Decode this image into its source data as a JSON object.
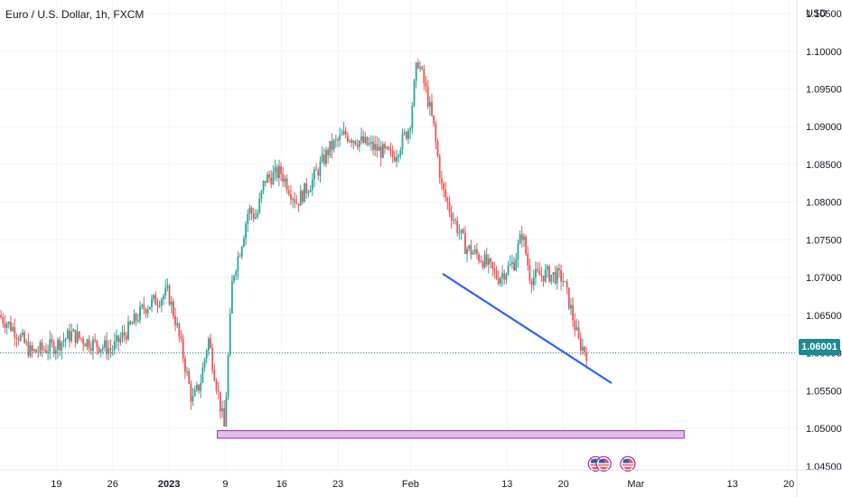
{
  "symbol_title": "Euro / U.S. Dollar, 1h, FXCM",
  "axis_unit": "USD",
  "current_price_label": "1.06001",
  "colors": {
    "up": "#26a69a",
    "down": "#ef5350",
    "trendline": "#2962ff",
    "support_fill": "#e1bee7",
    "support_border": "#9c27b0",
    "price_line": "#1e8a93",
    "grid": "#f0f3fa"
  },
  "chart_data": {
    "type": "candlestick",
    "title": "Euro / U.S. Dollar, 1h, FXCM",
    "ylabel": "USD",
    "ylim": [
      1.0445,
      1.1068
    ],
    "y_ticks": [
      "1.10500",
      "1.10000",
      "1.09500",
      "1.09000",
      "1.08500",
      "1.08000",
      "1.07500",
      "1.07000",
      "1.06500",
      "1.06000",
      "1.05500",
      "1.05000",
      "1.04500"
    ],
    "y_tick_values": [
      1.105,
      1.1,
      1.095,
      1.09,
      1.085,
      1.08,
      1.075,
      1.07,
      1.065,
      1.06,
      1.055,
      1.05,
      1.045
    ],
    "x_ticks": [
      "19",
      "26",
      "2023",
      "9",
      "16",
      "23",
      "Feb",
      "13",
      "20",
      "Mar",
      "13",
      "20"
    ],
    "x_tick_dates": [
      "2022-12-19",
      "2022-12-26",
      "2023-01-02",
      "2023-01-09",
      "2023-01-16",
      "2023-01-23",
      "2023-02-01",
      "2023-02-13",
      "2023-02-20",
      "2023-03-01",
      "2023-03-13",
      "2023-03-20"
    ],
    "x_start": "2022-12-12",
    "x_end": "2023-03-21",
    "price_path": [
      [
        "2022-12-12",
        1.065
      ],
      [
        "2022-12-14",
        1.063
      ],
      [
        "2022-12-16",
        1.06
      ],
      [
        "2022-12-19",
        1.061
      ],
      [
        "2022-12-21",
        1.0625
      ],
      [
        "2022-12-23",
        1.0615
      ],
      [
        "2022-12-26",
        1.0605
      ],
      [
        "2022-12-28",
        1.063
      ],
      [
        "2022-12-30",
        1.066
      ],
      [
        "2023-01-02",
        1.068
      ],
      [
        "2023-01-03",
        1.064
      ],
      [
        "2023-01-04",
        1.059
      ],
      [
        "2023-01-05",
        1.0535
      ],
      [
        "2023-01-06",
        1.056
      ],
      [
        "2023-01-07",
        1.062
      ],
      [
        "2023-01-08",
        1.056
      ],
      [
        "2023-01-09",
        1.05
      ],
      [
        "2023-01-10",
        1.07
      ],
      [
        "2023-01-11",
        1.074
      ],
      [
        "2023-01-12",
        1.079
      ],
      [
        "2023-01-13",
        1.078
      ],
      [
        "2023-01-14",
        1.083
      ],
      [
        "2023-01-16",
        1.084
      ],
      [
        "2023-01-18",
        1.08
      ],
      [
        "2023-01-20",
        1.083
      ],
      [
        "2023-01-22",
        1.087
      ],
      [
        "2023-01-24",
        1.089
      ],
      [
        "2023-01-26",
        1.088
      ],
      [
        "2023-01-28",
        1.087
      ],
      [
        "2023-01-30",
        1.086
      ],
      [
        "2023-02-01",
        1.09
      ],
      [
        "2023-02-02",
        1.099
      ],
      [
        "2023-02-03",
        1.095
      ],
      [
        "2023-02-04",
        1.09
      ],
      [
        "2023-02-05",
        1.082
      ],
      [
        "2023-02-06",
        1.079
      ],
      [
        "2023-02-08",
        1.074
      ],
      [
        "2023-02-10",
        1.0725
      ],
      [
        "2023-02-12",
        1.07
      ],
      [
        "2023-02-14",
        1.072
      ],
      [
        "2023-02-15",
        1.076
      ],
      [
        "2023-02-16",
        1.07
      ],
      [
        "2023-02-18",
        1.0705
      ],
      [
        "2023-02-20",
        1.07
      ],
      [
        "2023-02-21",
        1.066
      ],
      [
        "2023-02-22",
        1.0615
      ],
      [
        "2023-02-23",
        1.06
      ]
    ],
    "annotations": [
      {
        "type": "trendline",
        "from": [
          "2023-02-05",
          1.0705
        ],
        "to": [
          "2023-02-26",
          1.056
        ]
      },
      {
        "type": "zone",
        "from_date": "2023-01-08",
        "to_date": "2023-03-07",
        "y_low": 1.0487,
        "y_high": 1.0497
      },
      {
        "type": "horizontal_line",
        "y": 1.06001,
        "style": "dotted"
      }
    ],
    "event_markers": {
      "dates": [
        "2023-02-24",
        "2023-02-25",
        "2023-02-28"
      ],
      "y": 1.0453
    },
    "grid": true,
    "legend": "none"
  }
}
